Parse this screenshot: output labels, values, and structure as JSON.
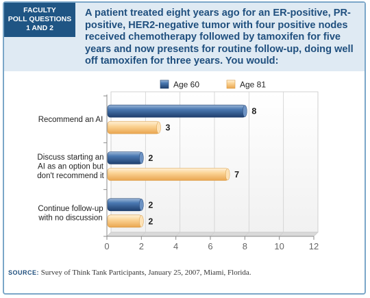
{
  "header": {
    "tag_line1": "FACULTY",
    "tag_line2": "POLL QUESTIONS",
    "tag_line3": "1 AND 2",
    "question": "A patient treated eight years ago for an ER-positive, PR-positive, HER2-negative tumor with four positive nodes received chemotherapy followed by tamoxifen for five years and now presents for routine follow-up, doing well off tamoxifen for three years. You would:"
  },
  "source": {
    "label": "SOURCE:",
    "text": "Survey of Think Tank Participants, January 25, 2007, Miami, Florida."
  },
  "colors": {
    "age60": "#2f5d96",
    "age81": "#f8c278",
    "accent": "#1f5584"
  },
  "chart_data": {
    "type": "bar",
    "orientation": "horizontal",
    "categories": [
      [
        "Recommend an AI"
      ],
      [
        "Discuss starting an",
        "AI as an option but",
        "don't recommend it"
      ],
      [
        "Continue follow-up",
        "with no discussion"
      ]
    ],
    "series": [
      {
        "name": "Age 60",
        "values": [
          8,
          2,
          2
        ]
      },
      {
        "name": "Age 81",
        "values": [
          3,
          7,
          2
        ]
      }
    ],
    "xticks": [
      0,
      2,
      4,
      6,
      8,
      10,
      12
    ],
    "xlim": [
      0,
      12
    ],
    "grid": true,
    "legend_position": "top"
  }
}
